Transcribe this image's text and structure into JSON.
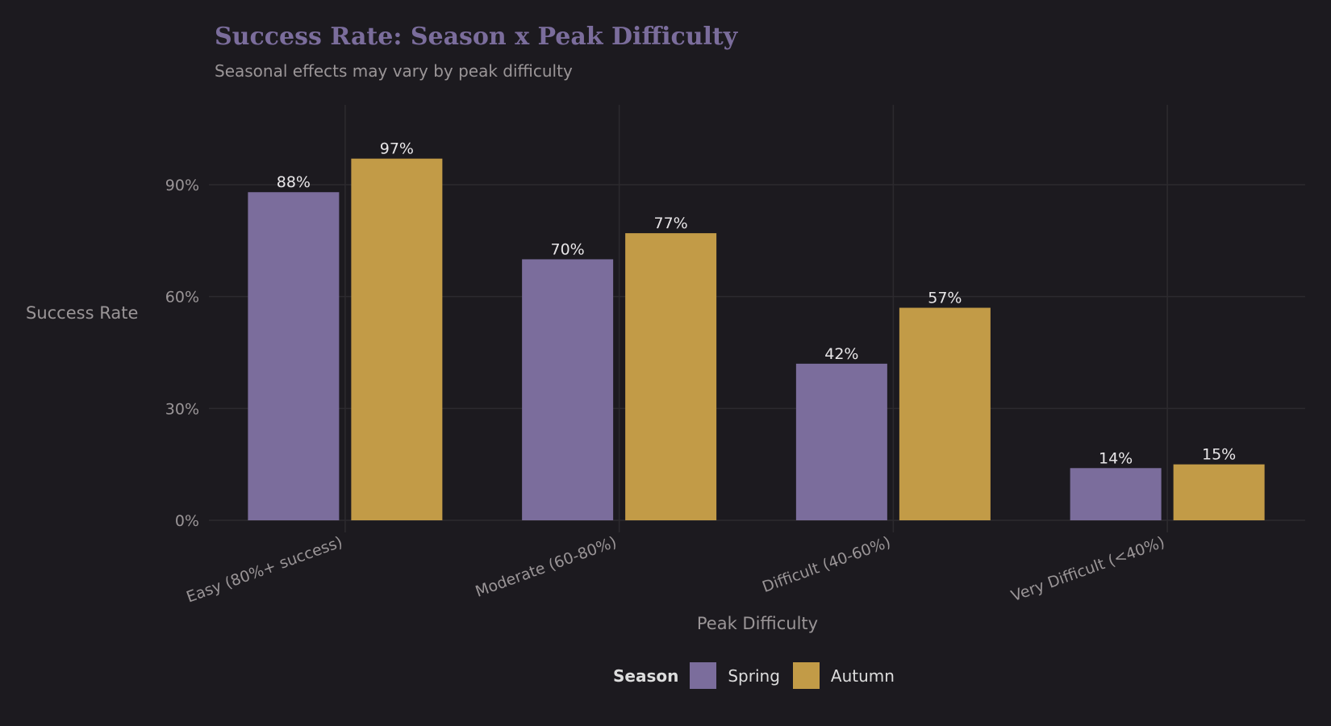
{
  "chart_data": {
    "type": "bar",
    "title": "Success Rate: Season x Peak Difficulty",
    "subtitle": "Seasonal effects may vary by peak difficulty",
    "xlabel": "Peak Difficulty",
    "ylabel": "Success Rate",
    "categories": [
      "Easy (80%+ success)",
      "Moderate (60-80%)",
      "Difficult (40-60%)",
      "Very Difficult (<40%)"
    ],
    "series": [
      {
        "name": "Spring",
        "color": "#7b6d9c",
        "values": [
          88,
          70,
          42,
          14
        ],
        "labels": [
          "88%",
          "70%",
          "42%",
          "14%"
        ]
      },
      {
        "name": "Autumn",
        "color": "#c29b47",
        "values": [
          97,
          77,
          57,
          15
        ],
        "labels": [
          "97%",
          "77%",
          "57%",
          "15%"
        ]
      }
    ],
    "yticks": [
      0,
      30,
      60,
      90
    ],
    "ytick_labels": [
      "0%",
      "30%",
      "60%",
      "90%"
    ],
    "ylim": [
      0,
      112
    ],
    "legend": {
      "title": "Season",
      "position": "bottom"
    },
    "grid": true
  }
}
